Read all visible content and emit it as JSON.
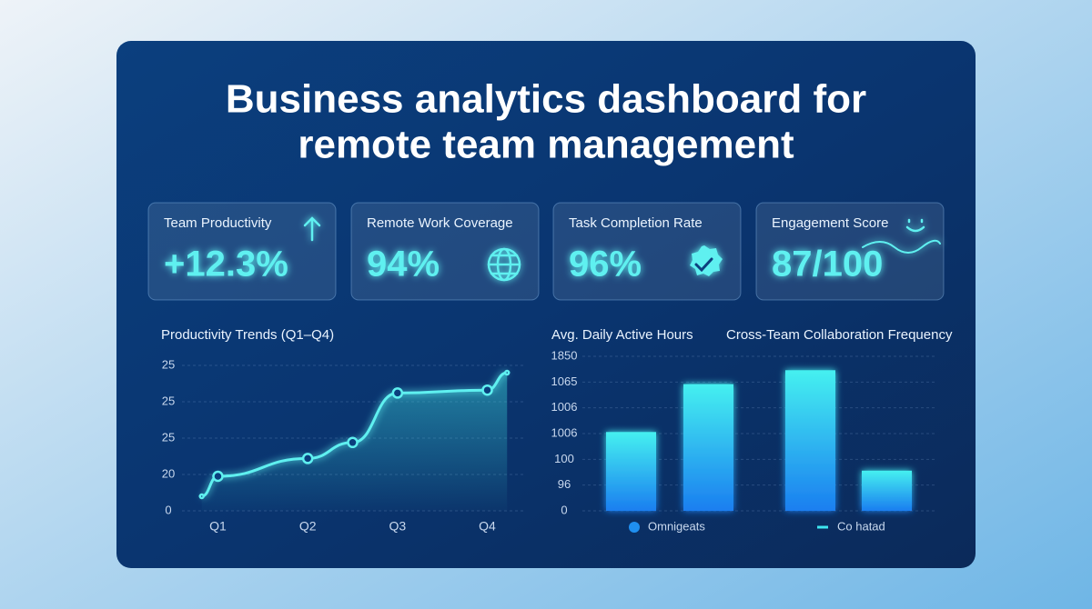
{
  "title": [
    "Business analytics dashboard for",
    "remote team management"
  ],
  "cards": [
    {
      "label": "Team Productivity",
      "value": "+12.3%"
    },
    {
      "label": "Remote Work Coverage",
      "value": "94%"
    },
    {
      "label": "Task Completion Rate",
      "value": "96%"
    },
    {
      "label": "Engagement Score",
      "value": "87/100"
    }
  ],
  "chart_data": [
    {
      "type": "line",
      "title": "Productivity Trends (Q1–Q4)",
      "x": [
        0.82,
        1,
        2,
        2.5,
        3,
        4,
        4.22
      ],
      "xlim": [
        0.6,
        4.4
      ],
      "xticks": [
        {
          "value": 1,
          "label": "Q1"
        },
        {
          "value": 2,
          "label": "Q2"
        },
        {
          "value": 3,
          "label": "Q3"
        },
        {
          "value": 4,
          "label": "Q4"
        }
      ],
      "y_labels": [
        "25",
        "25",
        "25",
        "20",
        "0"
      ],
      "ylim": [
        0,
        100
      ],
      "series": [
        {
          "color": "#5ff0f0",
          "values": [
            10,
            23.75,
            36,
            47,
            81,
            83,
            95
          ]
        }
      ]
    },
    {
      "type": "bar",
      "title": "Avg. Daily Active Hours",
      "subtitle": "Cross-Team Collaboration Frequency",
      "categories": [
        null,
        null,
        null,
        null
      ],
      "y_labels": [
        "1850",
        "1065",
        "1006",
        "1006",
        "100",
        "96",
        "0"
      ],
      "ylim": [
        0,
        100
      ],
      "series": [
        {
          "name": "Omnigeats",
          "color": "#1f8ff0",
          "values": [
            51,
            82,
            null,
            null
          ]
        },
        {
          "name": "Co hatad",
          "color": "#3ee6f0",
          "values": [
            null,
            null,
            91,
            26
          ]
        }
      ]
    }
  ]
}
